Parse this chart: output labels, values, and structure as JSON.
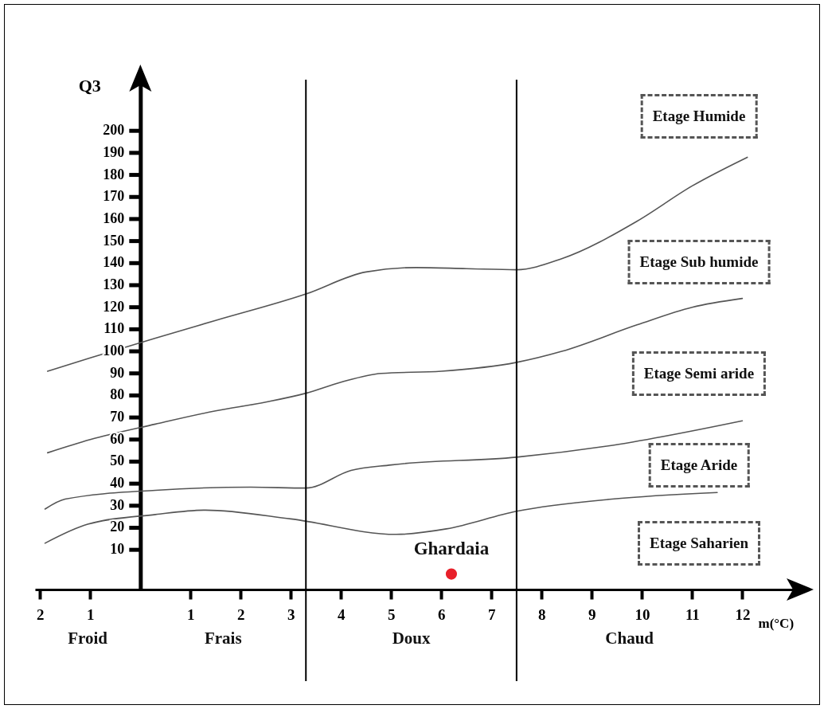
{
  "chart_data": {
    "type": "line",
    "xlabel": "m(°C)",
    "ylabel": "Q3",
    "xlim": [
      -2.1,
      13.2
    ],
    "ylim": [
      -8,
      225
    ],
    "xticks": [
      {
        "value": -2,
        "label": "2"
      },
      {
        "value": -1,
        "label": "1"
      },
      1,
      2,
      3,
      4,
      5,
      6,
      7,
      8,
      9,
      10,
      11,
      12
    ],
    "yticks": [
      10,
      20,
      30,
      40,
      50,
      60,
      70,
      80,
      90,
      100,
      110,
      120,
      130,
      140,
      150,
      160,
      170,
      180,
      190,
      200
    ],
    "grid": false,
    "marker": "none",
    "line_style": "solid",
    "series": [
      {
        "color": "#555555",
        "x": [
          -1.85,
          -1,
          0.3,
          1.5,
          3.3,
          4.5,
          5.5,
          6.5,
          7.5,
          8.4,
          9.9,
          11,
          12.1
        ],
        "values": [
          91,
          97,
          106,
          114,
          126,
          136,
          138,
          137.5,
          137,
          142,
          159,
          175,
          188
        ]
      },
      {
        "color": "#555555",
        "x": [
          -1.85,
          -1,
          0.3,
          1.5,
          2.5,
          3.3,
          4,
          4.8,
          6,
          7.5,
          8.4,
          9.9,
          11,
          12
        ],
        "values": [
          54,
          60,
          67,
          73,
          77,
          81,
          86,
          90,
          91,
          95,
          100,
          112,
          120,
          124
        ]
      },
      {
        "color": "#555555",
        "x": [
          -1.9,
          -1.5,
          0.3,
          2.2,
          3.3,
          4.2,
          5,
          7.5,
          9.3,
          12
        ],
        "values": [
          28.5,
          33,
          37,
          38.4,
          38,
          46,
          48.5,
          52,
          57,
          68.5
        ]
      },
      {
        "color": "#555555",
        "x": [
          -1.9,
          -1.05,
          0.3,
          1.3,
          3,
          5.1,
          6.1,
          7.5,
          9.4,
          11.5
        ],
        "values": [
          13,
          21.6,
          26,
          28,
          24,
          17,
          19.5,
          27.5,
          33,
          36
        ]
      },
      {
        "type": "scatter",
        "name": "Ghardaia",
        "color": "#e8202a",
        "marker": "circle",
        "x": [
          6.2
        ],
        "values": [
          -1
        ]
      }
    ],
    "ref_lines": [
      {
        "axis": "x",
        "value": 3.3
      },
      {
        "axis": "x",
        "value": 7.5
      }
    ],
    "annotations": [
      "Etage Humide",
      "Etage Sub humide",
      "Etage Semi aride",
      "Etage Aride",
      "Etage Saharien",
      "Froid",
      "Frais",
      "Doux",
      "Chaud"
    ]
  }
}
